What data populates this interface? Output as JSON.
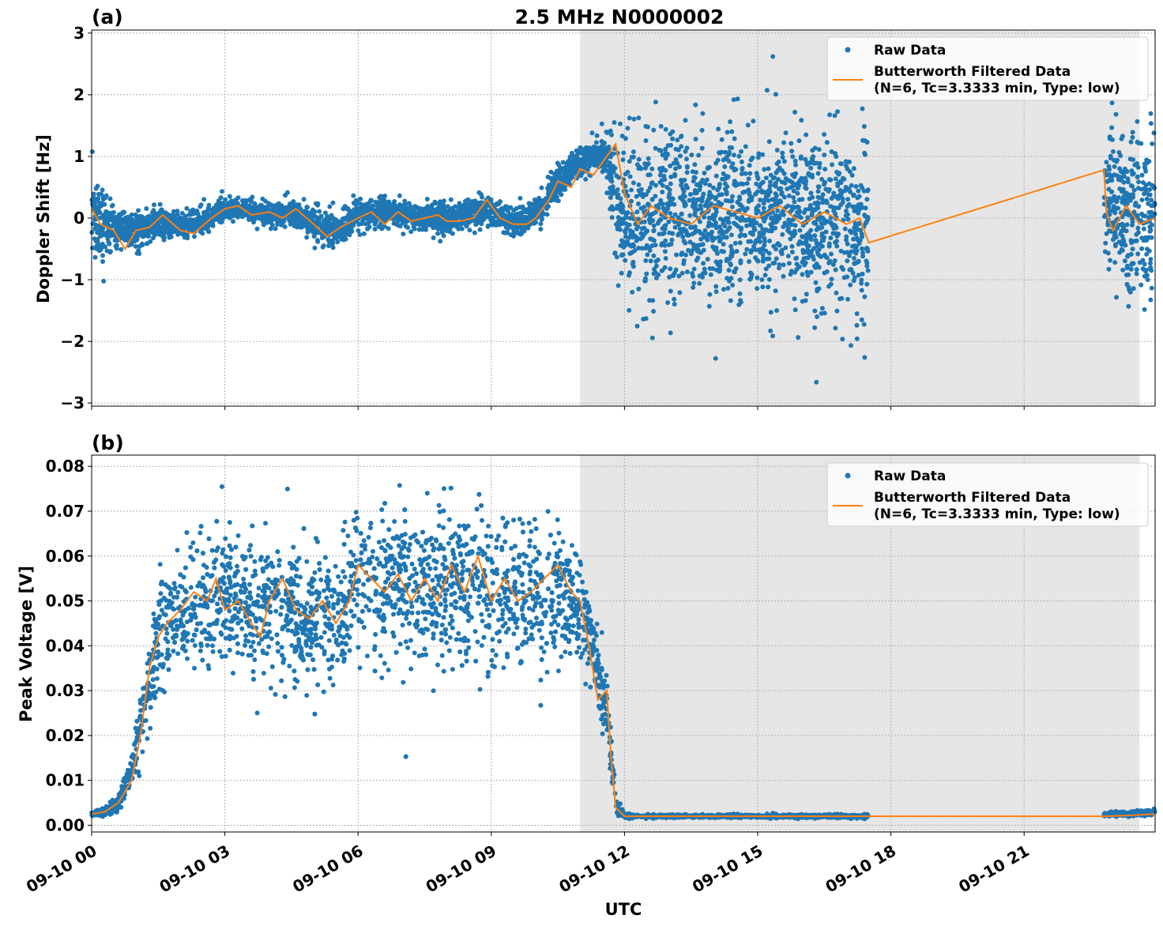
{
  "colors": {
    "raw": "#1f77b4",
    "filtered": "#ff7f0e",
    "shade": "#e6e6e6",
    "grid": "#b0b0b0"
  },
  "title": "2.5 MHz N0000002",
  "xlabel": "UTC",
  "x_tick_labels": [
    "09-10 00",
    "09-10 03",
    "09-10 06",
    "09-10 09",
    "09-10 12",
    "09-10 15",
    "09-10 18",
    "09-10 21"
  ],
  "legend": {
    "raw": "Raw Data",
    "filtered_line1": "Butterworth Filtered Data",
    "filtered_line2": "(N=6, Tc=3.3333 min, Type: low)"
  },
  "chart_data": [
    {
      "type": "scatter",
      "panel_label": "(a)",
      "title": "2.5 MHz N0000002",
      "ylabel": "Doppler Shift [Hz]",
      "xlabel": "",
      "x_unit": "hours UTC, 09-10",
      "xlim": [
        0,
        23.95
      ],
      "ylim": [
        -3.05,
        3.05
      ],
      "yticks": [
        -3,
        -2,
        -1,
        0,
        1,
        2,
        3
      ],
      "ytick_labels": [
        "−3",
        "−2",
        "−1",
        "0",
        "1",
        "2",
        "3"
      ],
      "grid": true,
      "legend_position": "top-right",
      "shaded_region_x": [
        11.0,
        23.6
      ],
      "data_gaps_x": [
        [
          17.5,
          22.8
        ]
      ],
      "series": [
        {
          "name": "Raw Data",
          "kind": "points",
          "x": [
            0,
            0.5,
            1,
            1.5,
            2,
            2.5,
            3,
            3.5,
            4,
            4.5,
            5,
            5.5,
            6,
            6.5,
            7,
            7.5,
            8,
            8.5,
            9,
            9.5,
            10,
            10.5,
            11,
            11.5,
            12,
            13,
            14,
            15,
            16,
            17,
            17.5,
            22.8,
            23.3,
            23.95
          ],
          "center": [
            0.0,
            -0.15,
            -0.2,
            -0.05,
            -0.15,
            -0.05,
            0.15,
            0.15,
            0.05,
            0.1,
            -0.1,
            -0.2,
            0.05,
            0.1,
            0.05,
            0.05,
            -0.05,
            0.1,
            0.1,
            -0.1,
            0.05,
            0.6,
            0.9,
            1.1,
            0.0,
            0.05,
            0.0,
            0.05,
            0.1,
            -0.05,
            -0.3,
            0.4,
            0.0,
            0.1
          ],
          "spread": [
            0.9,
            0.35,
            0.3,
            0.25,
            0.25,
            0.25,
            0.2,
            0.2,
            0.2,
            0.2,
            0.3,
            0.3,
            0.3,
            0.25,
            0.25,
            0.25,
            0.25,
            0.25,
            0.25,
            0.25,
            0.25,
            0.3,
            0.3,
            0.3,
            1.4,
            1.5,
            1.5,
            1.5,
            1.5,
            1.5,
            1.5,
            1.5,
            1.5,
            1.5
          ]
        },
        {
          "name": "Butterworth Filtered Data",
          "kind": "line",
          "x": [
            0,
            0.2,
            0.5,
            0.75,
            1,
            1.3,
            1.6,
            2,
            2.3,
            2.7,
            3,
            3.3,
            3.6,
            4,
            4.3,
            4.6,
            5,
            5.3,
            5.6,
            6,
            6.3,
            6.6,
            6.9,
            7.2,
            7.5,
            7.8,
            8,
            8.3,
            8.6,
            8.9,
            9.2,
            9.5,
            9.8,
            10,
            10.3,
            10.5,
            10.8,
            11,
            11.3,
            11.6,
            11.8,
            12,
            12.3,
            12.6,
            13,
            13.5,
            14,
            14.5,
            15,
            15.5,
            16,
            16.5,
            17,
            17.3,
            17.5,
            22.8,
            22.85,
            23,
            23.3,
            23.6,
            23.95
          ],
          "y": [
            0.15,
            -0.1,
            -0.2,
            -0.5,
            -0.2,
            -0.15,
            0.05,
            -0.2,
            -0.25,
            0.0,
            0.15,
            0.2,
            0.05,
            0.1,
            0.0,
            0.15,
            -0.1,
            -0.3,
            -0.15,
            0.0,
            0.1,
            -0.1,
            0.1,
            -0.05,
            0.0,
            0.05,
            -0.05,
            -0.05,
            0.0,
            0.3,
            0.0,
            -0.1,
            -0.1,
            0.0,
            0.3,
            0.6,
            0.5,
            0.8,
            0.7,
            1.0,
            1.2,
            0.4,
            -0.1,
            0.2,
            0.0,
            -0.1,
            0.2,
            0.1,
            0.0,
            0.2,
            -0.1,
            0.1,
            -0.1,
            0.0,
            -0.4,
            0.78,
            0.1,
            -0.2,
            0.2,
            -0.1,
            0.0
          ]
        }
      ]
    },
    {
      "type": "scatter",
      "panel_label": "(b)",
      "title": "",
      "ylabel": "Peak Voltage [V]",
      "xlabel": "UTC",
      "x_unit": "hours UTC, 09-10",
      "xlim": [
        0,
        23.95
      ],
      "ylim": [
        -0.0015,
        0.0825
      ],
      "yticks": [
        0.0,
        0.01,
        0.02,
        0.03,
        0.04,
        0.05,
        0.06,
        0.07,
        0.08
      ],
      "ytick_labels": [
        "0.00",
        "0.01",
        "0.02",
        "0.03",
        "0.04",
        "0.05",
        "0.06",
        "0.07",
        "0.08"
      ],
      "grid": true,
      "legend_position": "top-right",
      "shaded_region_x": [
        11.0,
        23.6
      ],
      "data_gaps_x": [
        [
          17.5,
          22.8
        ]
      ],
      "series": [
        {
          "name": "Raw Data",
          "kind": "points",
          "x": [
            0,
            0.3,
            0.6,
            0.9,
            1.2,
            1.5,
            1.8,
            2.2,
            2.6,
            3.0,
            3.5,
            4.0,
            4.5,
            5.0,
            5.5,
            6.0,
            6.5,
            7.0,
            7.5,
            8.0,
            8.5,
            9.0,
            9.5,
            10.0,
            10.5,
            11.0,
            11.3,
            11.6,
            11.8,
            12.0,
            13,
            14,
            15,
            16,
            17,
            17.5,
            22.8,
            23.4,
            23.95
          ],
          "center": [
            0.0025,
            0.003,
            0.005,
            0.012,
            0.028,
            0.042,
            0.045,
            0.048,
            0.05,
            0.052,
            0.048,
            0.05,
            0.047,
            0.045,
            0.048,
            0.055,
            0.052,
            0.054,
            0.055,
            0.052,
            0.052,
            0.05,
            0.052,
            0.05,
            0.052,
            0.048,
            0.04,
            0.025,
            0.005,
            0.002,
            0.002,
            0.002,
            0.002,
            0.002,
            0.002,
            0.002,
            0.0025,
            0.0025,
            0.003
          ],
          "spread": [
            0.0008,
            0.001,
            0.002,
            0.004,
            0.01,
            0.014,
            0.015,
            0.016,
            0.016,
            0.016,
            0.017,
            0.017,
            0.017,
            0.016,
            0.017,
            0.018,
            0.018,
            0.018,
            0.018,
            0.018,
            0.018,
            0.018,
            0.018,
            0.018,
            0.016,
            0.014,
            0.01,
            0.008,
            0.002,
            0.0005,
            0.0004,
            0.0004,
            0.0004,
            0.0004,
            0.0004,
            0.0004,
            0.0006,
            0.0006,
            0.0008
          ]
        },
        {
          "name": "Butterworth Filtered Data",
          "kind": "line",
          "x": [
            0,
            0.3,
            0.6,
            0.9,
            1.1,
            1.3,
            1.5,
            1.7,
            2.0,
            2.3,
            2.6,
            2.8,
            3.0,
            3.3,
            3.6,
            3.8,
            4.0,
            4.3,
            4.6,
            4.9,
            5.2,
            5.5,
            5.8,
            6.0,
            6.3,
            6.6,
            6.9,
            7.2,
            7.5,
            7.8,
            8.1,
            8.4,
            8.7,
            9.0,
            9.3,
            9.6,
            9.9,
            10.2,
            10.5,
            10.8,
            11.0,
            11.2,
            11.4,
            11.6,
            11.7,
            11.8,
            12.0,
            13,
            14,
            15,
            16,
            17,
            17.5,
            22.8,
            23.4,
            23.95
          ],
          "y": [
            0.0025,
            0.003,
            0.005,
            0.01,
            0.02,
            0.035,
            0.042,
            0.045,
            0.048,
            0.052,
            0.05,
            0.055,
            0.048,
            0.05,
            0.045,
            0.042,
            0.05,
            0.055,
            0.048,
            0.046,
            0.05,
            0.045,
            0.05,
            0.058,
            0.055,
            0.052,
            0.056,
            0.05,
            0.055,
            0.05,
            0.058,
            0.052,
            0.06,
            0.05,
            0.055,
            0.05,
            0.052,
            0.055,
            0.058,
            0.052,
            0.05,
            0.04,
            0.028,
            0.03,
            0.015,
            0.004,
            0.002,
            0.002,
            0.002,
            0.002,
            0.002,
            0.002,
            0.002,
            0.002,
            0.0022,
            0.0025
          ]
        }
      ]
    }
  ]
}
